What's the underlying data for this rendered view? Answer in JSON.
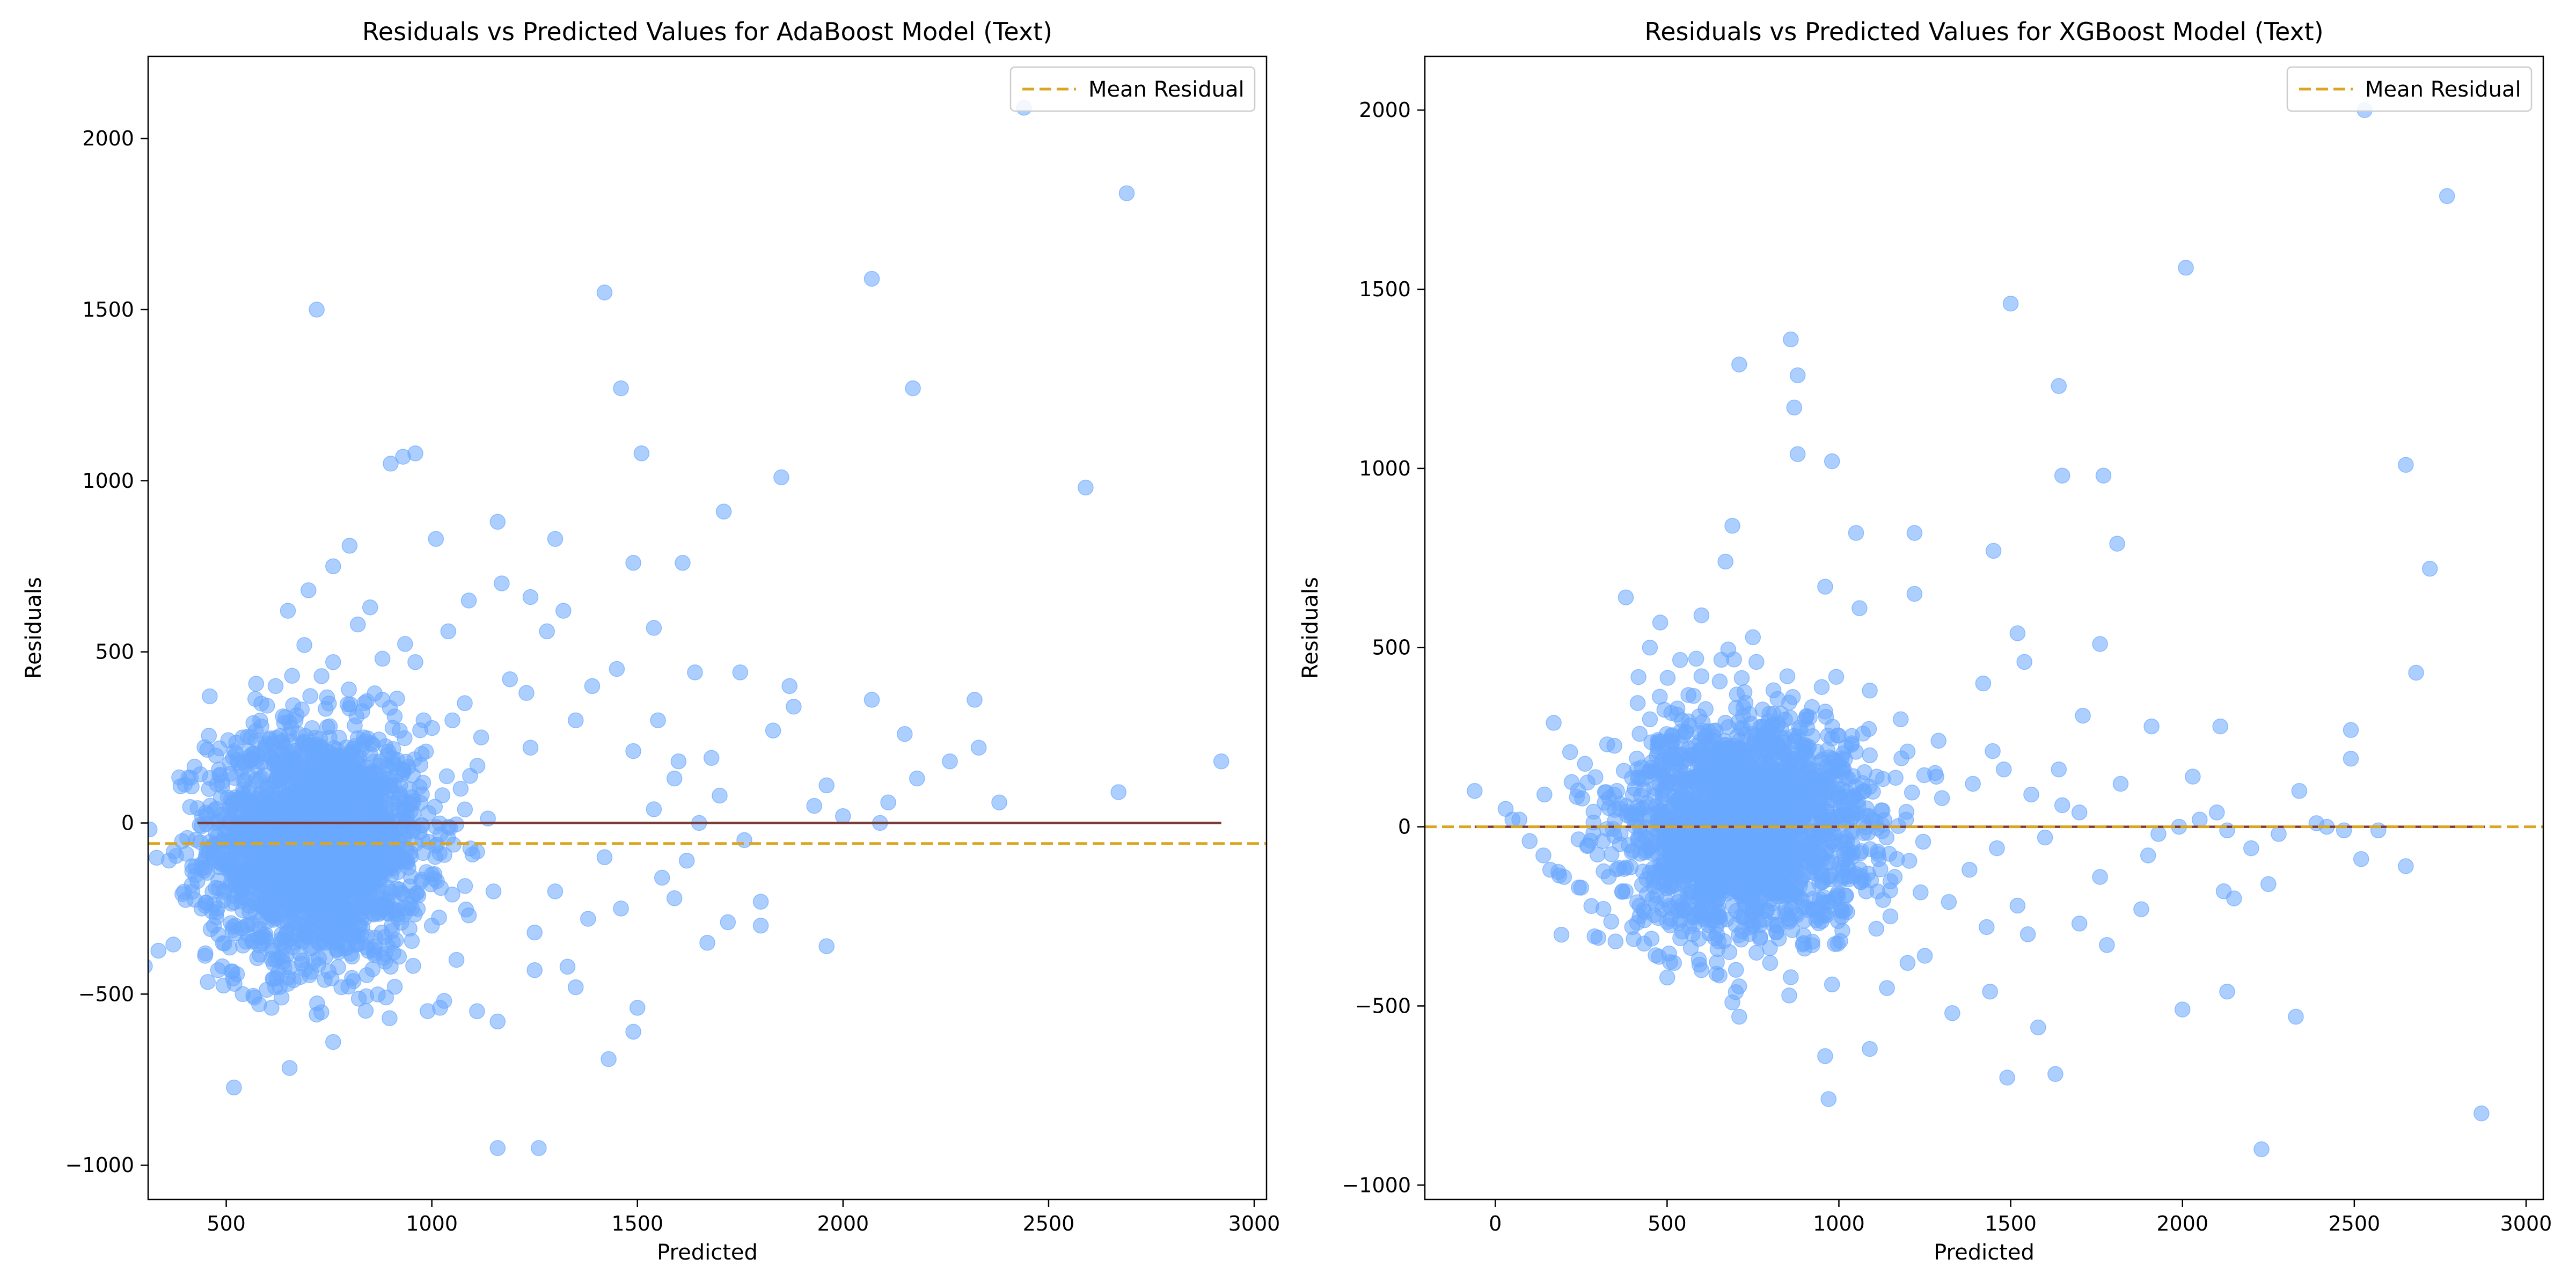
{
  "chart_data": [
    {
      "type": "scatter",
      "title": "Residuals vs Predicted Values for AdaBoost Model (Text)",
      "xlabel": "Predicted",
      "ylabel": "Residuals",
      "xlim": [
        310,
        3030
      ],
      "ylim": [
        -1100,
        2240
      ],
      "xticks": [
        500,
        1000,
        1500,
        2000,
        2500,
        3000
      ],
      "yticks": [
        -1000,
        -500,
        0,
        500,
        1000,
        1500,
        2000
      ],
      "point_color": "#6aa8ff",
      "zero_line_color": "#7a3b3b",
      "zero_line_range": [
        430,
        2920
      ],
      "mean_residual": -60,
      "mean_line_color": "#daa520",
      "legend": {
        "entries": [
          "Mean Residual"
        ],
        "placement": "upper right"
      },
      "cluster": {
        "x_center": 720,
        "x_spread": 130,
        "y_center": -60,
        "y_spread": 170,
        "count": 2200
      },
      "points": [
        [
          720,
          1500
        ],
        [
          1420,
          1550
        ],
        [
          1460,
          1270
        ],
        [
          2070,
          1590
        ],
        [
          2170,
          1270
        ],
        [
          2440,
          2090
        ],
        [
          2690,
          1840
        ],
        [
          2590,
          980
        ],
        [
          1850,
          1010
        ],
        [
          1510,
          1080
        ],
        [
          930,
          1070
        ],
        [
          960,
          1080
        ],
        [
          900,
          1050
        ],
        [
          1010,
          830
        ],
        [
          1160,
          880
        ],
        [
          1300,
          830
        ],
        [
          1710,
          910
        ],
        [
          1610,
          760
        ],
        [
          1490,
          760
        ],
        [
          1540,
          570
        ],
        [
          2070,
          360
        ],
        [
          2320,
          360
        ],
        [
          2150,
          260
        ],
        [
          2260,
          180
        ],
        [
          2920,
          180
        ],
        [
          2670,
          90
        ],
        [
          2380,
          60
        ],
        [
          2110,
          60
        ],
        [
          2000,
          20
        ],
        [
          1960,
          110
        ],
        [
          1870,
          400
        ],
        [
          1750,
          440
        ],
        [
          1640,
          440
        ],
        [
          1930,
          50
        ],
        [
          2090,
          0
        ],
        [
          2180,
          130
        ],
        [
          2330,
          220
        ],
        [
          1650,
          0
        ],
        [
          1760,
          -50
        ],
        [
          1720,
          -290
        ],
        [
          1800,
          -230
        ],
        [
          1800,
          -300
        ],
        [
          1670,
          -350
        ],
        [
          1960,
          -360
        ],
        [
          1500,
          -540
        ],
        [
          1490,
          -610
        ],
        [
          1430,
          -690
        ],
        [
          1160,
          -950
        ],
        [
          1260,
          -950
        ],
        [
          1160,
          -580
        ],
        [
          1110,
          -550
        ],
        [
          1020,
          -540
        ],
        [
          1030,
          -520
        ],
        [
          760,
          -640
        ],
        [
          720,
          -560
        ],
        [
          1250,
          -430
        ],
        [
          1330,
          -420
        ],
        [
          1350,
          -480
        ],
        [
          1250,
          -320
        ],
        [
          1560,
          -160
        ],
        [
          1590,
          -220
        ],
        [
          1620,
          -110
        ],
        [
          1460,
          -250
        ],
        [
          1380,
          -280
        ],
        [
          1300,
          -200
        ],
        [
          1420,
          -100
        ],
        [
          1350,
          300
        ],
        [
          1450,
          450
        ],
        [
          1390,
          400
        ],
        [
          1280,
          560
        ],
        [
          1320,
          620
        ],
        [
          1240,
          660
        ],
        [
          1170,
          700
        ],
        [
          1090,
          650
        ],
        [
          1040,
          560
        ],
        [
          960,
          470
        ],
        [
          880,
          480
        ],
        [
          800,
          810
        ],
        [
          760,
          750
        ],
        [
          700,
          680
        ],
        [
          850,
          630
        ],
        [
          1190,
          420
        ],
        [
          1230,
          380
        ],
        [
          1080,
          350
        ],
        [
          1120,
          250
        ],
        [
          1240,
          220
        ],
        [
          1050,
          300
        ],
        [
          1550,
          300
        ],
        [
          1600,
          180
        ],
        [
          1540,
          40
        ],
        [
          1700,
          80
        ],
        [
          1680,
          190
        ],
        [
          1830,
          270
        ],
        [
          1880,
          340
        ],
        [
          1590,
          130
        ],
        [
          1490,
          210
        ],
        [
          460,
          370
        ],
        [
          480,
          -430
        ],
        [
          520,
          -470
        ],
        [
          540,
          -500
        ],
        [
          580,
          -530
        ],
        [
          610,
          -540
        ],
        [
          650,
          -470
        ],
        [
          470,
          -300
        ],
        [
          440,
          -250
        ],
        [
          430,
          -170
        ],
        [
          440,
          -120
        ],
        [
          450,
          30
        ],
        [
          490,
          120
        ],
        [
          540,
          250
        ],
        [
          520,
          210
        ],
        [
          620,
          400
        ],
        [
          660,
          430
        ],
        [
          690,
          520
        ],
        [
          650,
          620
        ],
        [
          760,
          470
        ],
        [
          820,
          580
        ],
        [
          880,
          360
        ],
        [
          980,
          300
        ],
        [
          1000,
          -300
        ],
        [
          900,
          -420
        ],
        [
          860,
          -380
        ],
        [
          780,
          -480
        ],
        [
          680,
          -450
        ],
        [
          620,
          -400
        ],
        [
          1060,
          -400
        ],
        [
          1090,
          -270
        ],
        [
          1150,
          -200
        ],
        [
          1000,
          -150
        ],
        [
          1070,
          100
        ]
      ]
    },
    {
      "type": "scatter",
      "title": "Residuals vs Predicted Values for XGBoost Model (Text)",
      "xlabel": "Predicted",
      "ylabel": "Residuals",
      "xlim": [
        -205,
        3050
      ],
      "ylim": [
        -1040,
        2150
      ],
      "xticks": [
        0,
        500,
        1000,
        1500,
        2000,
        2500,
        3000
      ],
      "yticks": [
        -1000,
        -500,
        0,
        500,
        1000,
        1500,
        2000
      ],
      "point_color": "#6aa8ff",
      "zero_line_color": "#7a3b3b",
      "zero_line_range": [
        -60,
        2880
      ],
      "mean_residual": 0,
      "mean_line_color": "#daa520",
      "legend": {
        "entries": [
          "Mean Residual"
        ],
        "placement": "upper right"
      },
      "cluster": {
        "x_center": 720,
        "x_spread": 180,
        "y_center": 0,
        "y_spread": 150,
        "count": 2100
      },
      "points": [
        [
          2530,
          2000
        ],
        [
          2770,
          1760
        ],
        [
          2010,
          1560
        ],
        [
          1500,
          1460
        ],
        [
          860,
          1360
        ],
        [
          710,
          1290
        ],
        [
          880,
          1260
        ],
        [
          870,
          1170
        ],
        [
          880,
          1040
        ],
        [
          980,
          1020
        ],
        [
          1640,
          1230
        ],
        [
          1650,
          980
        ],
        [
          1770,
          980
        ],
        [
          2650,
          1010
        ],
        [
          2720,
          720
        ],
        [
          2680,
          430
        ],
        [
          1810,
          790
        ],
        [
          1450,
          770
        ],
        [
          1220,
          820
        ],
        [
          1050,
          820
        ],
        [
          960,
          670
        ],
        [
          1220,
          650
        ],
        [
          1520,
          540
        ],
        [
          1540,
          460
        ],
        [
          1710,
          310
        ],
        [
          1760,
          510
        ],
        [
          1910,
          280
        ],
        [
          2030,
          140
        ],
        [
          2110,
          280
        ],
        [
          2490,
          270
        ],
        [
          2490,
          190
        ],
        [
          2340,
          100
        ],
        [
          1640,
          160
        ],
        [
          1420,
          400
        ],
        [
          1290,
          240
        ],
        [
          1180,
          300
        ],
        [
          1090,
          380
        ],
        [
          1060,
          610
        ],
        [
          690,
          840
        ],
        [
          670,
          740
        ],
        [
          600,
          590
        ],
        [
          480,
          570
        ],
        [
          450,
          500
        ],
        [
          380,
          640
        ],
        [
          170,
          290
        ],
        [
          -60,
          100
        ],
        [
          30,
          50
        ],
        [
          50,
          20
        ],
        [
          70,
          20
        ],
        [
          100,
          -40
        ],
        [
          140,
          -80
        ],
        [
          160,
          -120
        ],
        [
          200,
          -140
        ],
        [
          250,
          -170
        ],
        [
          1580,
          -560
        ],
        [
          1630,
          -690
        ],
        [
          1490,
          -700
        ],
        [
          960,
          -640
        ],
        [
          970,
          -760
        ],
        [
          1090,
          -620
        ],
        [
          2230,
          -900
        ],
        [
          2870,
          -800
        ],
        [
          2000,
          -510
        ],
        [
          2330,
          -530
        ],
        [
          2130,
          -460
        ],
        [
          1990,
          0
        ],
        [
          2050,
          20
        ],
        [
          2130,
          -10
        ],
        [
          2200,
          -60
        ],
        [
          2420,
          0
        ],
        [
          2520,
          -90
        ],
        [
          2650,
          -110
        ],
        [
          2570,
          -10
        ],
        [
          2280,
          -20
        ],
        [
          2150,
          -200
        ],
        [
          2250,
          -160
        ],
        [
          2120,
          -180
        ],
        [
          1700,
          -270
        ],
        [
          1880,
          -230
        ],
        [
          1780,
          -330
        ],
        [
          1550,
          -300
        ],
        [
          1440,
          -460
        ],
        [
          1330,
          -520
        ],
        [
          1250,
          -360
        ],
        [
          1200,
          -380
        ],
        [
          1140,
          -450
        ],
        [
          980,
          -440
        ],
        [
          900,
          -340
        ],
        [
          710,
          -530
        ],
        [
          690,
          -490
        ],
        [
          520,
          -380
        ],
        [
          600,
          -400
        ],
        [
          350,
          -320
        ],
        [
          300,
          -310
        ],
        [
          370,
          -180
        ],
        [
          420,
          -220
        ],
        [
          1380,
          -120
        ],
        [
          1460,
          -60
        ],
        [
          1600,
          -30
        ],
        [
          1650,
          60
        ],
        [
          1820,
          120
        ],
        [
          1700,
          40
        ],
        [
          1560,
          90
        ],
        [
          1480,
          160
        ],
        [
          1390,
          120
        ],
        [
          1300,
          80
        ],
        [
          1280,
          150
        ],
        [
          1200,
          210
        ],
        [
          1110,
          140
        ],
        [
          1070,
          260
        ],
        [
          950,
          390
        ],
        [
          850,
          420
        ],
        [
          760,
          460
        ],
        [
          600,
          420
        ],
        [
          530,
          330
        ],
        [
          450,
          300
        ],
        [
          650,
          -320
        ],
        [
          800,
          -380
        ],
        [
          860,
          -420
        ],
        [
          1010,
          -290
        ],
        [
          1150,
          -250
        ],
        [
          1320,
          -210
        ],
        [
          1430,
          -280
        ],
        [
          1520,
          -220
        ],
        [
          1760,
          -140
        ],
        [
          1900,
          -80
        ],
        [
          1930,
          -20
        ],
        [
          2100,
          40
        ],
        [
          2390,
          10
        ],
        [
          2470,
          -10
        ]
      ]
    }
  ]
}
